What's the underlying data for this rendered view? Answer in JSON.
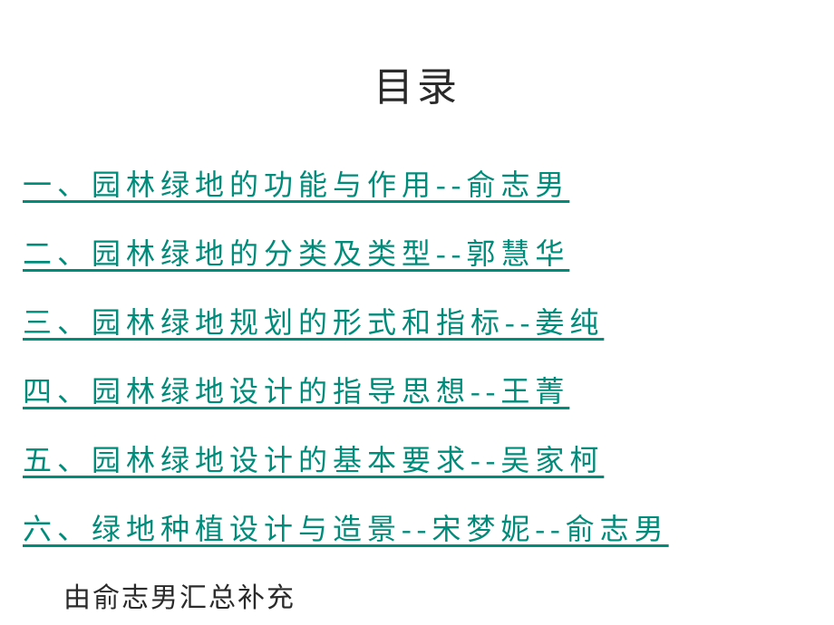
{
  "title": "目录",
  "toc": {
    "items": [
      "一、园林绿地的功能与作用--俞志男",
      "二、园林绿地的分类及类型--郭慧华",
      "三、园林绿地规划的形式和指标--姜纯",
      "四、园林绿地设计的指导思想--王菁",
      "五、园林绿地设计的基本要求--吴家柯",
      "六、绿地种植设计与造景--宋梦妮--俞志男"
    ]
  },
  "footer_note": "由俞志男汇总补充",
  "styling": {
    "background_color": "#ffffff",
    "title_color": "#2a2a2a",
    "title_fontsize": 44,
    "link_color": "#008b7a",
    "link_fontsize": 32,
    "footer_color": "#2a2a2a",
    "footer_fontsize": 30,
    "font_family": "KaiTi",
    "letter_spacing_links": 6,
    "letter_spacing_title": 4,
    "line_spacing": 30
  }
}
